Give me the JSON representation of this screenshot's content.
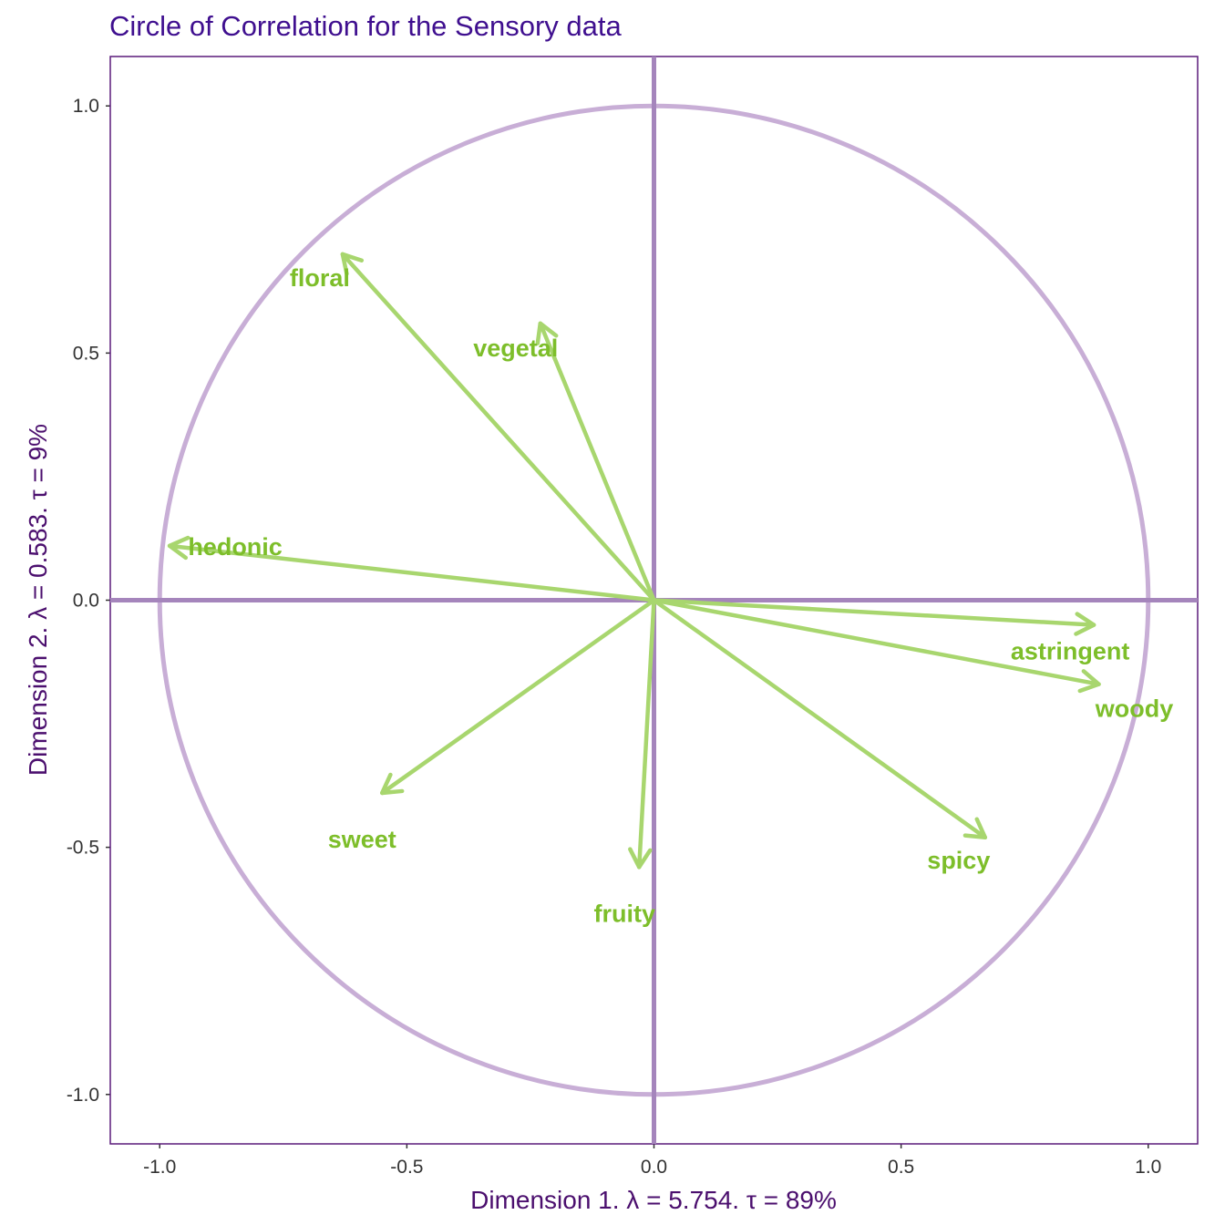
{
  "chart_data": {
    "type": "scatter",
    "title": "Circle of Correlation for the Sensory data",
    "xlabel": "Dimension 1.   λ = 5.754.  τ = 89%",
    "ylabel": "Dimension 2.   λ = 0.583.  τ = 9%",
    "xlim": [
      -1.1,
      1.1
    ],
    "ylim": [
      -1.1,
      1.1
    ],
    "xticks": [
      "-1.0",
      "-0.5",
      "0.0",
      "0.5",
      "1.0"
    ],
    "yticks": [
      "1.0",
      "0.5",
      "0.0",
      "-0.5",
      "-1.0"
    ],
    "grid": false,
    "unit_circle": true,
    "variables": [
      {
        "name": "hedonic",
        "x": -0.98,
        "y": 0.11
      },
      {
        "name": "floral",
        "x": -0.63,
        "y": 0.7
      },
      {
        "name": "vegetal",
        "x": -0.23,
        "y": 0.56
      },
      {
        "name": "sweet",
        "x": -0.55,
        "y": -0.39
      },
      {
        "name": "fruity",
        "x": -0.03,
        "y": -0.54
      },
      {
        "name": "spicy",
        "x": 0.67,
        "y": -0.48
      },
      {
        "name": "astringent",
        "x": 0.89,
        "y": -0.05
      },
      {
        "name": "woody",
        "x": 0.9,
        "y": -0.17
      }
    ]
  },
  "colors": {
    "title": "#3F0F8F",
    "axis_title": "#4B0F6E",
    "frame": "#5A1A7A",
    "circle": "#C8AED6",
    "axes": "#A585BC",
    "arrow": "#A8D66E",
    "var_label": "#7DBE2A"
  }
}
